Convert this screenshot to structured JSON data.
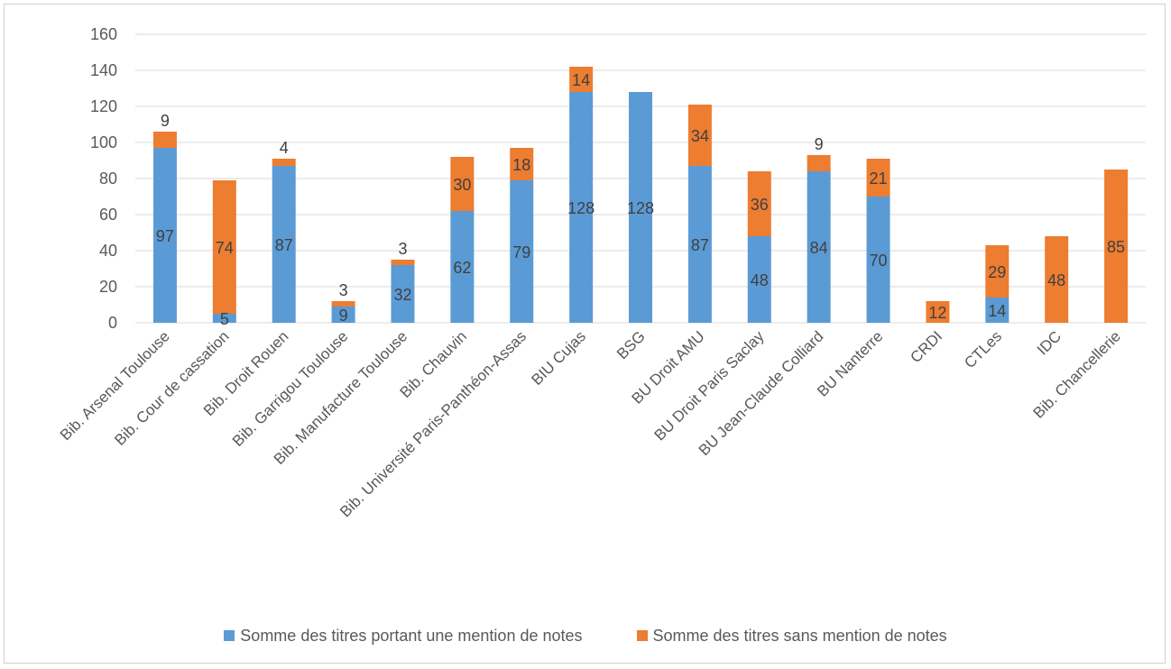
{
  "chart_data": {
    "type": "bar",
    "stacked": true,
    "categories": [
      "Bib. Arsenal Toulouse",
      "Bib. Cour de cassation",
      "Bib. Droit Rouen",
      "Bib. Garrigou Toulouse",
      "Bib. Manufacture Toulouse",
      "Bib. Chauvin",
      "Bib. Université Paris-Panthéon-Assas",
      "BIU Cujas",
      "BSG",
      "BU Droit AMU",
      "BU Droit Paris Saclay",
      "BU Jean-Claude Colliard",
      "BU Nanterre",
      "CRDI",
      "CTLes",
      "IDC",
      "Bib. Chancellerie"
    ],
    "series": [
      {
        "name": "Somme des titres portant une mention de notes",
        "color": "#5b9bd5",
        "values": [
          97,
          5,
          87,
          9,
          32,
          62,
          79,
          128,
          128,
          87,
          48,
          84,
          70,
          null,
          14,
          null,
          null
        ]
      },
      {
        "name": "Somme des titres sans mention de notes",
        "color": "#ed7d31",
        "values": [
          9,
          74,
          4,
          3,
          3,
          30,
          18,
          14,
          null,
          34,
          36,
          9,
          21,
          12,
          29,
          48,
          85
        ]
      }
    ],
    "yticks": [
      "0",
      "20",
      "40",
      "60",
      "80",
      "100",
      "120",
      "140",
      "160"
    ],
    "ylim": [
      0,
      160
    ],
    "grid": true,
    "gridColor": "#d9d9d9",
    "legend_position": "bottom"
  },
  "legend": {
    "items": [
      {
        "label": "Somme des titres portant une mention de notes",
        "color": "#5b9bd5"
      },
      {
        "label": "Somme des titres sans mention de notes",
        "color": "#ed7d31"
      }
    ]
  }
}
